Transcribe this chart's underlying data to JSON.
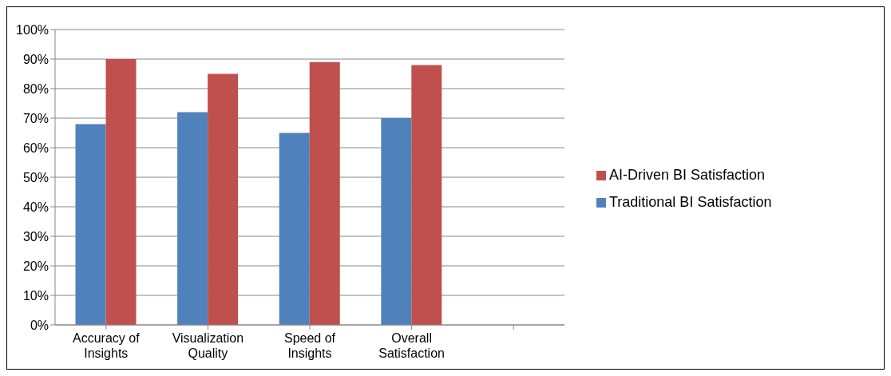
{
  "chart_data": {
    "type": "bar",
    "categories": [
      "Accuracy of Insights",
      "Visualization Quality",
      "Speed of Insights",
      "Overall Satisfaction",
      null
    ],
    "series": [
      {
        "name": "Traditional BI Satisfaction",
        "color": "#4f81bd",
        "values": [
          68,
          72,
          65,
          70,
          null
        ]
      },
      {
        "name": "AI-Driven BI Satisfaction",
        "color": "#c0504d",
        "values": [
          90,
          85,
          89,
          88,
          null
        ]
      }
    ],
    "ylim": [
      0,
      100
    ],
    "yticks": [
      {
        "value": 0,
        "label": "0%"
      },
      {
        "value": 10,
        "label": "10%"
      },
      {
        "value": 20,
        "label": "20%"
      },
      {
        "value": 30,
        "label": "30%"
      },
      {
        "value": 40,
        "label": "40%"
      },
      {
        "value": 50,
        "label": "50%"
      },
      {
        "value": 60,
        "label": "60%"
      },
      {
        "value": 70,
        "label": "70%"
      },
      {
        "value": 80,
        "label": "80%"
      },
      {
        "value": 90,
        "label": "90%"
      },
      {
        "value": 100,
        "label": "100%"
      }
    ],
    "grid": "y",
    "legend": "right"
  }
}
